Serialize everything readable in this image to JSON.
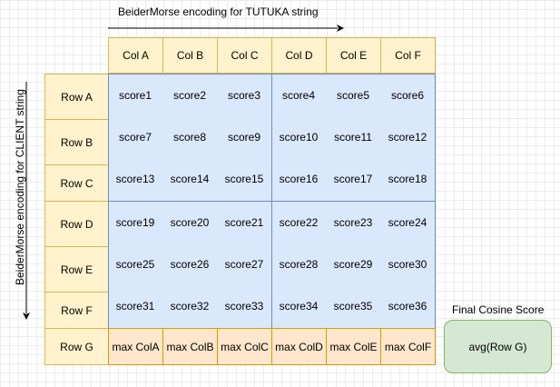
{
  "top_label": "BeiderMorse encoding for TUTUKA string",
  "side_label": "BeiderMorse encoding for CLIENT string",
  "columns": [
    "Col A",
    "Col B",
    "Col C",
    "Col D",
    "Col E",
    "Col F"
  ],
  "rows": [
    "Row A",
    "Row B",
    "Row C",
    "Row D",
    "Row E",
    "Row F"
  ],
  "scores": [
    [
      "score1",
      "score2",
      "score3",
      "score4",
      "score5",
      "score6"
    ],
    [
      "score7",
      "score8",
      "score9",
      "score10",
      "score11",
      "score12"
    ],
    [
      "score13",
      "score14",
      "score15",
      "score16",
      "score17",
      "score18"
    ],
    [
      "score19",
      "score20",
      "score21",
      "score22",
      "score23",
      "score24"
    ],
    [
      "score25",
      "score26",
      "score27",
      "score28",
      "score29",
      "score30"
    ],
    [
      "score31",
      "score32",
      "score33",
      "score34",
      "score35",
      "score36"
    ]
  ],
  "row_g": {
    "label": "Row G",
    "cells": [
      "max ColA",
      "max ColB",
      "max ColC",
      "max ColD",
      "max ColE",
      "max ColF"
    ]
  },
  "final": {
    "title": "Final Cosine Score",
    "value": "avg(Row G)"
  },
  "colors": {
    "header_fill": "#fff2cc",
    "header_stroke": "#d6b656",
    "score_fill": "#dae8fc",
    "score_stroke": "#6c8ebf",
    "max_fill": "#ffe6cc",
    "max_stroke": "#d79b00",
    "final_fill": "#d5e8d4",
    "final_stroke": "#82b366"
  }
}
